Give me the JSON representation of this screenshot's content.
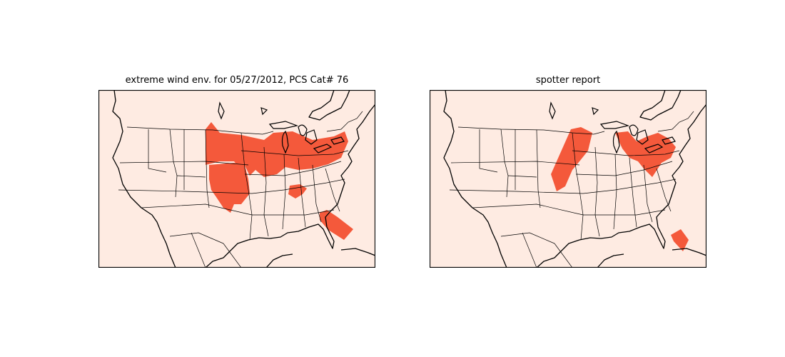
{
  "panels": [
    {
      "title": "extreme wind env. for 05/27/2012, PCS Cat# 76",
      "highlighted_regions": [
        "northern-plains-midwest-band",
        "southern-plains-tongue",
        "tennessee-valley-patch",
        "florida-peninsula"
      ]
    },
    {
      "title": "spotter report",
      "highlighted_regions": [
        "kansas-iowa-band",
        "ohio-valley-mid-atlantic",
        "south-florida"
      ]
    }
  ],
  "colors": {
    "land": "#feebe2",
    "highlight": "#f4593b",
    "lines": "#000000"
  }
}
